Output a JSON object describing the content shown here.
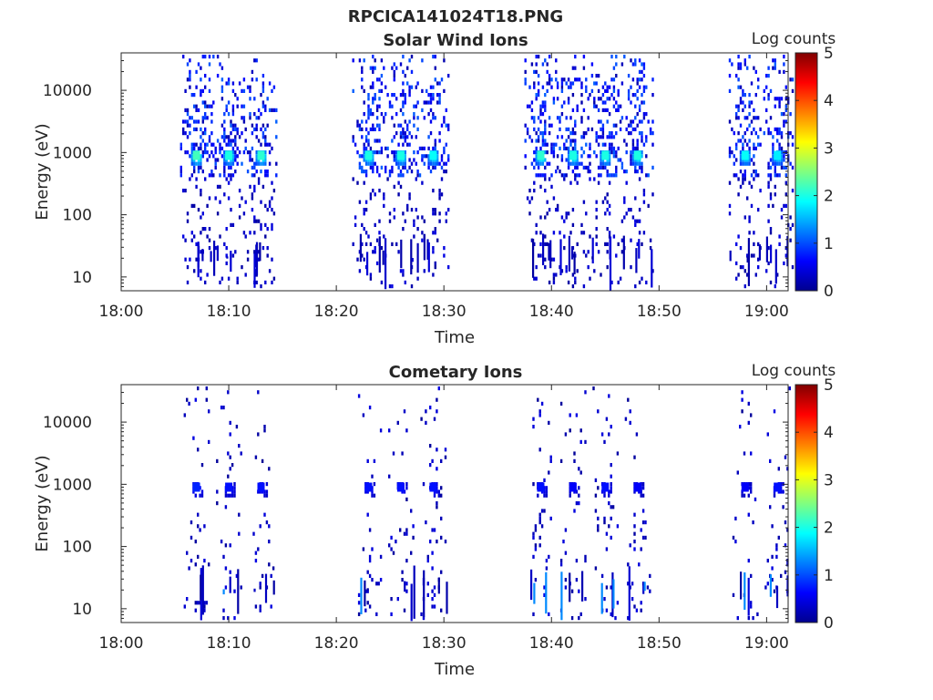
{
  "figure": {
    "title": "RPCICA141024T18.PNG"
  },
  "chart_data": [
    {
      "type": "heatmap",
      "title": "Solar Wind Ions",
      "xlabel": "Time",
      "ylabel": "Energy (eV)",
      "x_ticks": [
        "18:00",
        "18:10",
        "18:20",
        "18:30",
        "18:40",
        "18:50",
        "19:00"
      ],
      "x_range": [
        "18:00",
        "19:02"
      ],
      "y_scale": "log",
      "y_ticks": [
        "10",
        "100",
        "1000",
        "10000"
      ],
      "y_range": [
        6,
        40000
      ],
      "colorbar": {
        "label": "Log counts",
        "ticks": [
          "0",
          "1",
          "2",
          "3",
          "4",
          "5"
        ],
        "range": [
          0,
          5
        ],
        "colormap": "jet"
      },
      "scans": [
        {
          "time": "18:07",
          "peak_energy_eV": 900,
          "peak_log_counts": 2.2
        },
        {
          "time": "18:10",
          "peak_energy_eV": 900,
          "peak_log_counts": 2.0
        },
        {
          "time": "18:13",
          "peak_energy_eV": 900,
          "peak_log_counts": 2.1
        },
        {
          "time": "18:23",
          "peak_energy_eV": 900,
          "peak_log_counts": 2.0
        },
        {
          "time": "18:26",
          "peak_energy_eV": 900,
          "peak_log_counts": 2.0
        },
        {
          "time": "18:29",
          "peak_energy_eV": 900,
          "peak_log_counts": 1.9
        },
        {
          "time": "18:39",
          "peak_energy_eV": 900,
          "peak_log_counts": 2.1
        },
        {
          "time": "18:42",
          "peak_energy_eV": 900,
          "peak_log_counts": 2.0
        },
        {
          "time": "18:45",
          "peak_energy_eV": 900,
          "peak_log_counts": 2.0
        },
        {
          "time": "18:48",
          "peak_energy_eV": 900,
          "peak_log_counts": 2.0
        },
        {
          "time": "18:58",
          "peak_energy_eV": 900,
          "peak_log_counts": 1.9
        },
        {
          "time": "19:01",
          "peak_energy_eV": 900,
          "peak_log_counts": 1.8
        }
      ],
      "grid": false
    },
    {
      "type": "heatmap",
      "title": "Cometary Ions",
      "xlabel": "Time",
      "ylabel": "Energy (eV)",
      "x_ticks": [
        "18:00",
        "18:10",
        "18:20",
        "18:30",
        "18:40",
        "18:50",
        "19:00"
      ],
      "x_range": [
        "18:00",
        "19:02"
      ],
      "y_scale": "log",
      "y_ticks": [
        "10",
        "100",
        "1000",
        "10000"
      ],
      "y_range": [
        6,
        40000
      ],
      "colorbar": {
        "label": "Log counts",
        "ticks": [
          "0",
          "1",
          "2",
          "3",
          "4",
          "5"
        ],
        "range": [
          0,
          5
        ],
        "colormap": "jet"
      },
      "scans": [
        {
          "time": "18:07",
          "peak_energy_eV": 900,
          "peak_log_counts": 0.8
        },
        {
          "time": "18:10",
          "peak_energy_eV": 900,
          "peak_log_counts": 0.7
        },
        {
          "time": "18:13",
          "peak_energy_eV": 900,
          "peak_log_counts": 0.7
        },
        {
          "time": "18:23",
          "peak_energy_eV": 900,
          "peak_log_counts": 0.7
        },
        {
          "time": "18:26",
          "peak_energy_eV": 900,
          "peak_log_counts": 0.7
        },
        {
          "time": "18:29",
          "peak_energy_eV": 900,
          "peak_log_counts": 0.7
        },
        {
          "time": "18:39",
          "peak_energy_eV": 900,
          "peak_log_counts": 0.7
        },
        {
          "time": "18:42",
          "peak_energy_eV": 900,
          "peak_log_counts": 0.6
        },
        {
          "time": "18:45",
          "peak_energy_eV": 900,
          "peak_log_counts": 0.7
        },
        {
          "time": "18:48",
          "peak_energy_eV": 900,
          "peak_log_counts": 0.6
        },
        {
          "time": "18:58",
          "peak_energy_eV": 900,
          "peak_log_counts": 0.6
        },
        {
          "time": "19:01",
          "peak_energy_eV": 900,
          "peak_log_counts": 0.7
        }
      ],
      "grid": false
    }
  ]
}
